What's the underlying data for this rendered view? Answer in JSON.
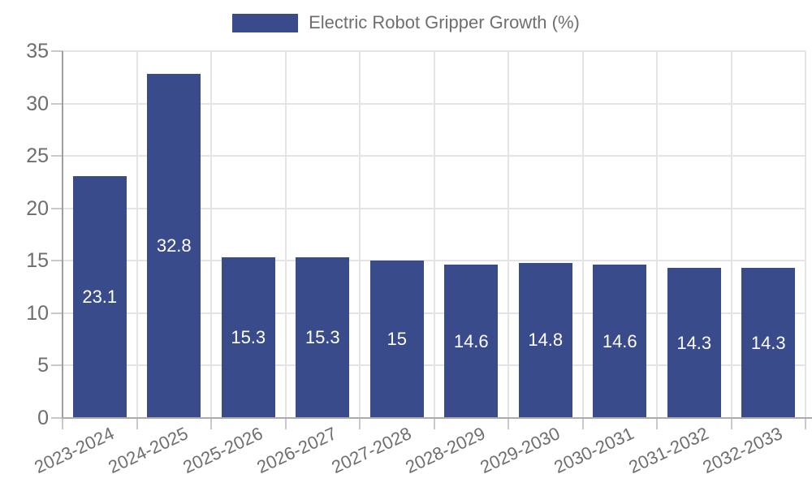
{
  "legend": {
    "label": "Electric Robot Gripper Growth (%)"
  },
  "chart_data": {
    "type": "bar",
    "title": "",
    "legend_entries": [
      "Electric Robot Gripper Growth (%)"
    ],
    "legend_position": "top-center",
    "categories": [
      "2023-2024",
      "2024-2025",
      "2025-2026",
      "2026-2027",
      "2027-2028",
      "2028-2029",
      "2029-2030",
      "2030-2031",
      "2031-2032",
      "2032-2033"
    ],
    "series": [
      {
        "name": "Electric Robot Gripper Growth (%)",
        "values": [
          23.1,
          32.8,
          15.3,
          15.3,
          15,
          14.6,
          14.8,
          14.6,
          14.3,
          14.3
        ],
        "value_labels": [
          "23.1",
          "32.8",
          "15.3",
          "15.3",
          "15",
          "14.6",
          "14.8",
          "14.6",
          "14.3",
          "14.3"
        ]
      }
    ],
    "xlabel": "",
    "ylabel": "",
    "ylim": [
      0,
      35
    ],
    "yticks": [
      0,
      5,
      10,
      15,
      20,
      25,
      30,
      35
    ],
    "grid": true,
    "x_label_rotation_deg": -25,
    "colors": {
      "bar": "#3A4B8C",
      "grid": "#E4E4E4",
      "axis_line": "#9E9E9E",
      "baseline": "#ABABAB",
      "tick_mark": "#C9C9C9",
      "tick_text": "#6E6E6E",
      "value_text": "#FFFFFF",
      "legend_text": "#6F6F6F",
      "background": "#FFFFFF"
    }
  }
}
